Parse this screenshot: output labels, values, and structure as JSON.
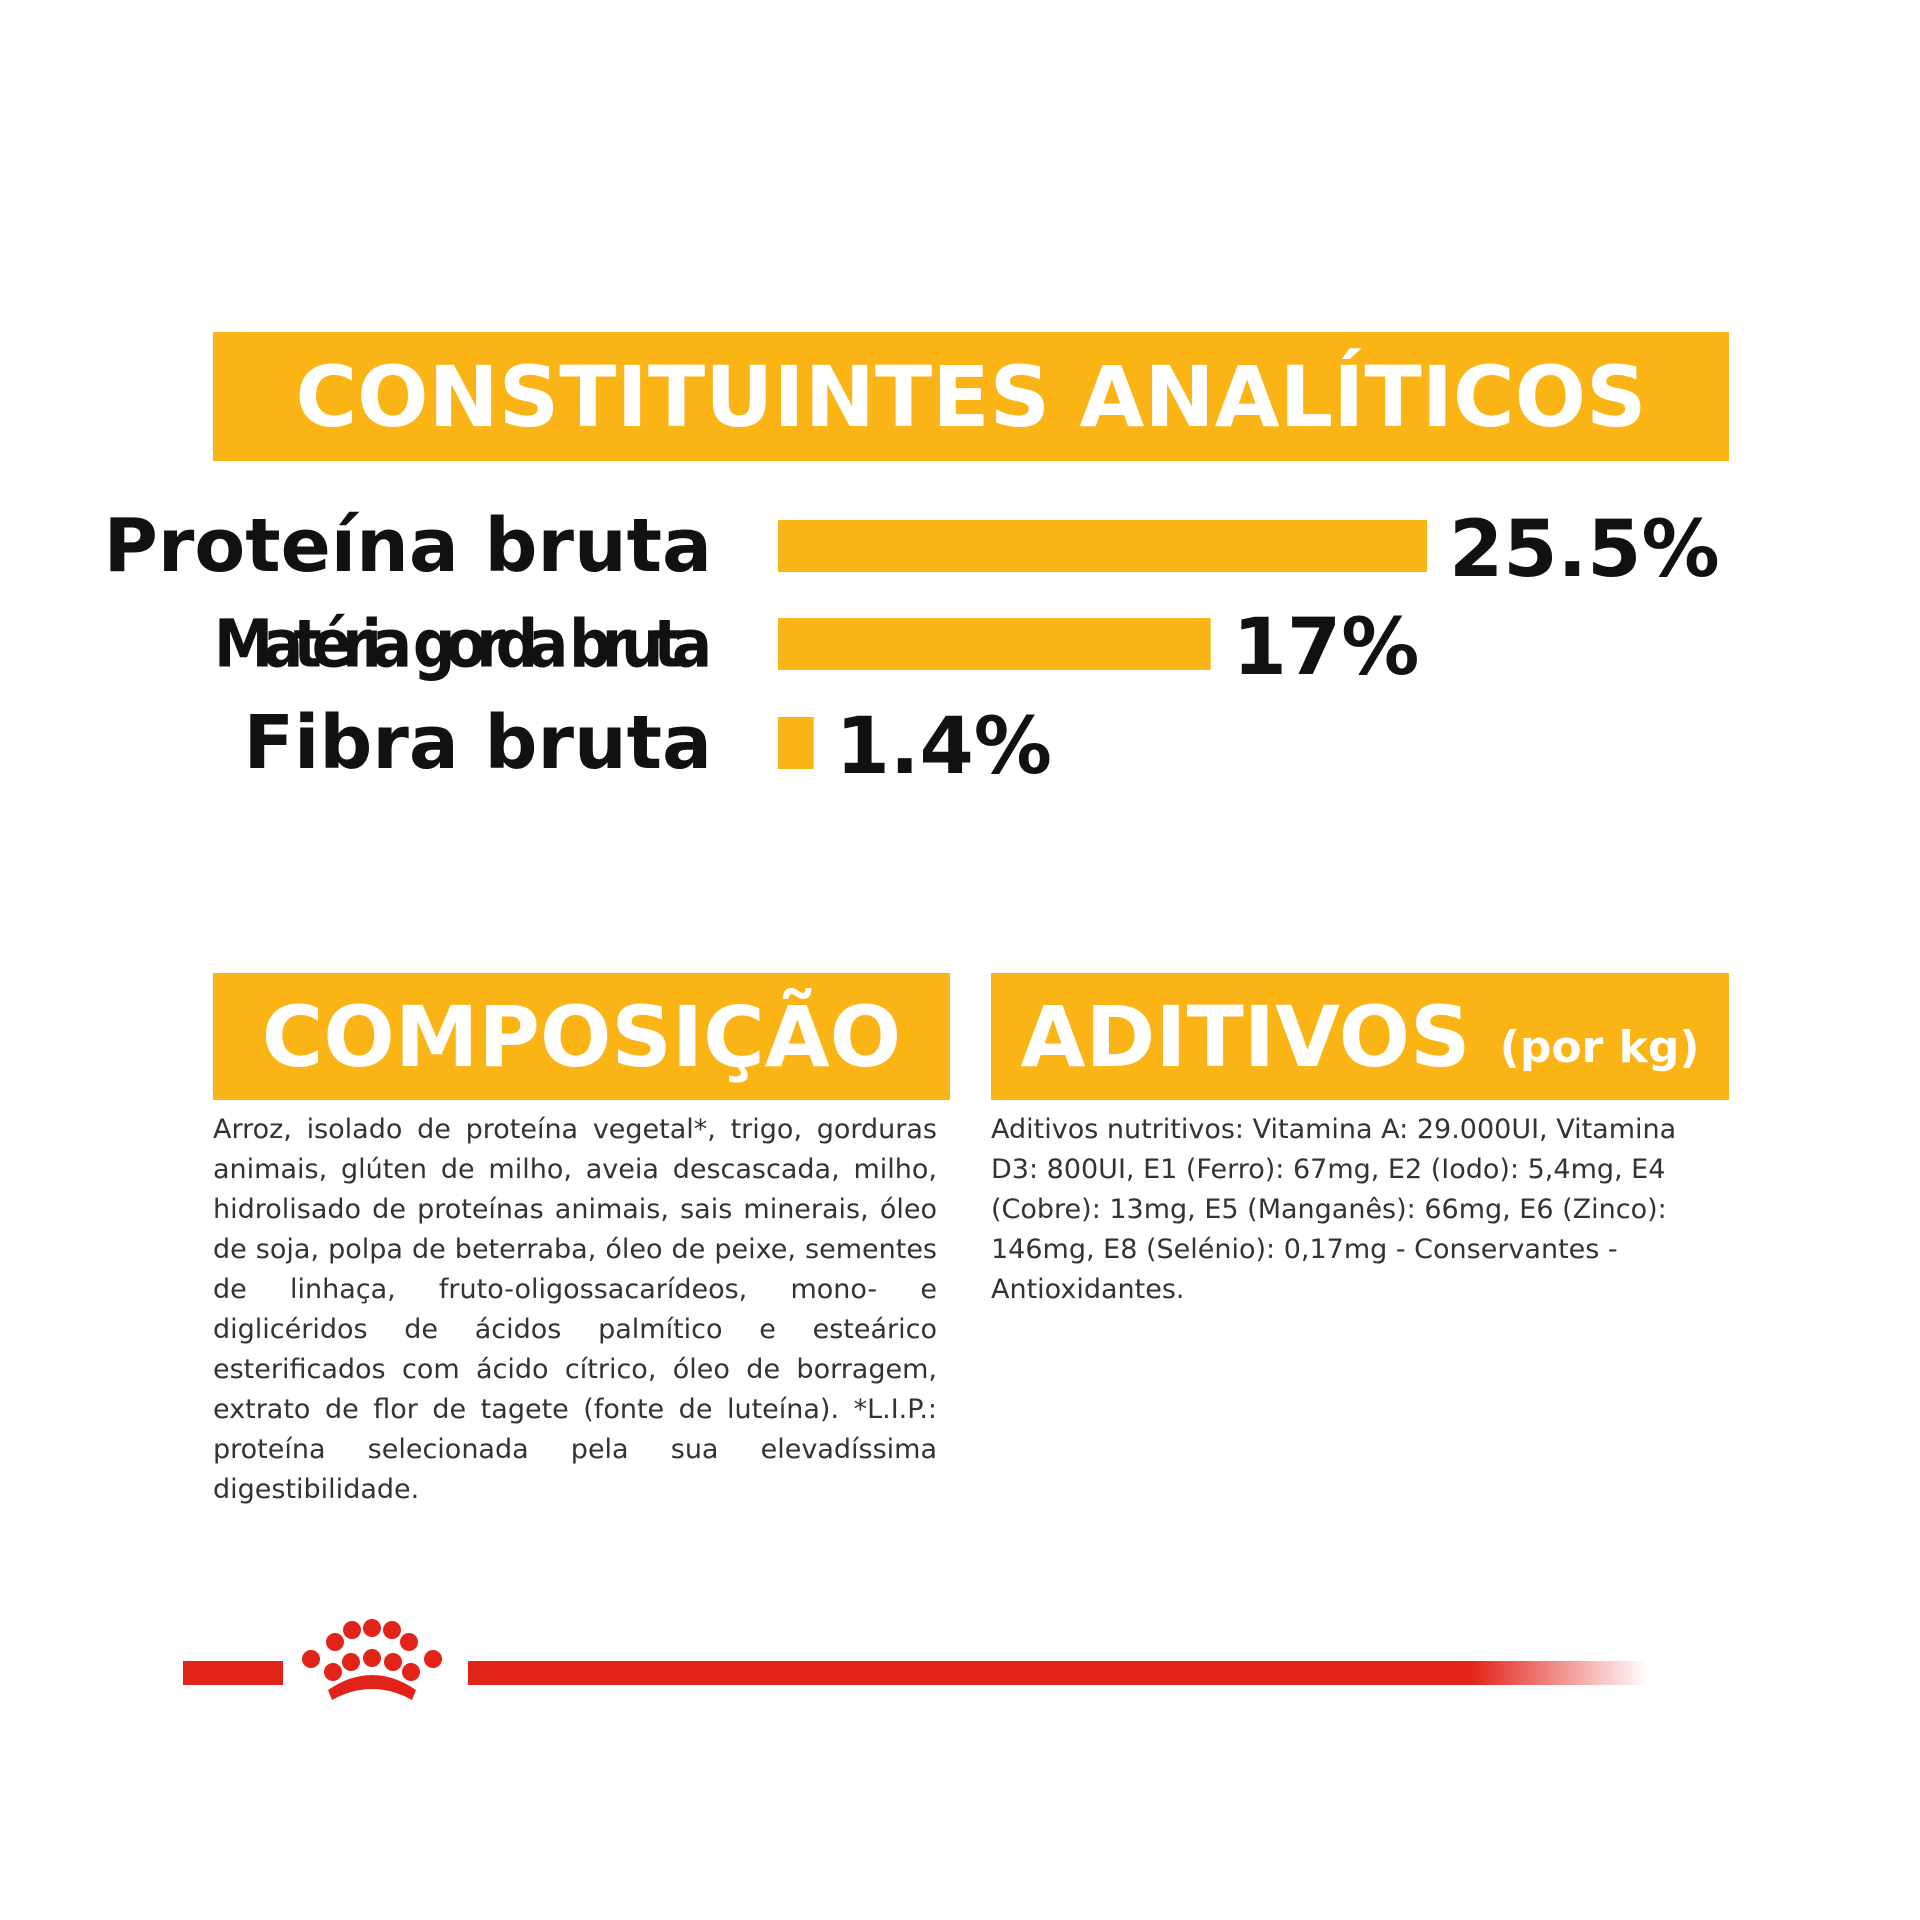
{
  "chart_data": {
    "type": "hbar",
    "title": "CONSTITUINTES ANALÍTICOS",
    "categories": [
      "Proteína bruta",
      "Matéria gorda bruta",
      "Fibra bruta"
    ],
    "values": [
      25.5,
      17,
      1.4
    ],
    "value_labels": [
      "25.5%",
      "17%",
      "1.4%"
    ],
    "color": "#fbb416"
  },
  "composition": {
    "title": "COMPOSIÇÃO",
    "text": "Arroz, isolado de proteína vegetal*, trigo, gorduras animais, glúten de milho, aveia descascada, milho, hidrolisado de proteínas animais, sais minerais, óleo de soja, polpa de beterraba, óleo de peixe, sementes de linhaça, fruto-oligossacarídeos, mono- e diglicéridos de ácidos palmítico e esteárico esterificados com ácido cítrico, óleo de borragem, extrato de flor de tagete (fonte de luteína). *L.I.P.: proteína selecionada pela sua elevadíssima digestibilidade."
  },
  "additives": {
    "title": "ADITIVOS",
    "unit": "(por kg)",
    "text": "Aditivos nutritivos: Vitamina A: 29.000UI, Vitamina D3: 800UI, E1 (Ferro): 67mg, E2 (Iodo): 5,4mg, E4 (Cobre): 13mg, E5 (Manganês): 66mg, E6 (Zinco): 146mg, E8 (Selénio): 0,17mg - Conservantes - Antioxidantes."
  }
}
